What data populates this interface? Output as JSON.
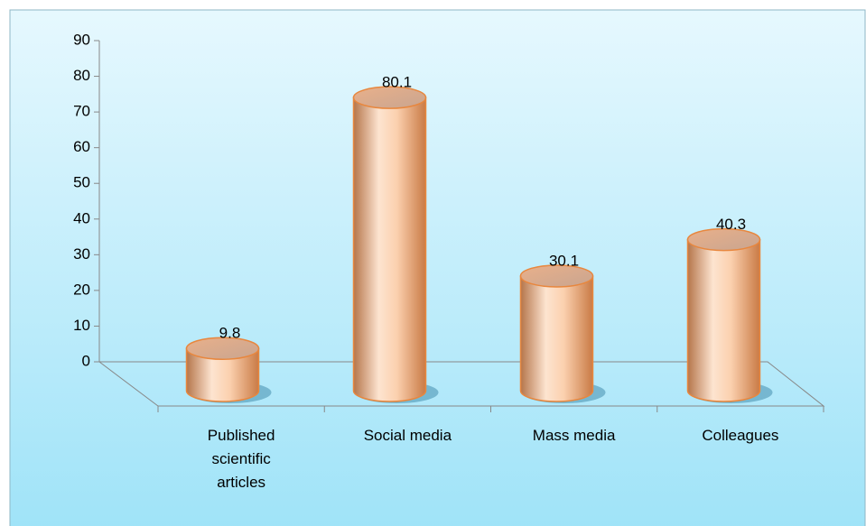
{
  "chart_data": {
    "type": "bar",
    "categories": [
      "Published scientific articles",
      "Social media",
      "Mass media",
      "Colleagues"
    ],
    "values": [
      9.8,
      80.1,
      30.1,
      40.3
    ],
    "color": "#f2a66c",
    "ylim": [
      0,
      90
    ],
    "yticks": [
      0,
      10,
      20,
      30,
      40,
      50,
      60,
      70,
      80,
      90
    ],
    "grid": false
  }
}
